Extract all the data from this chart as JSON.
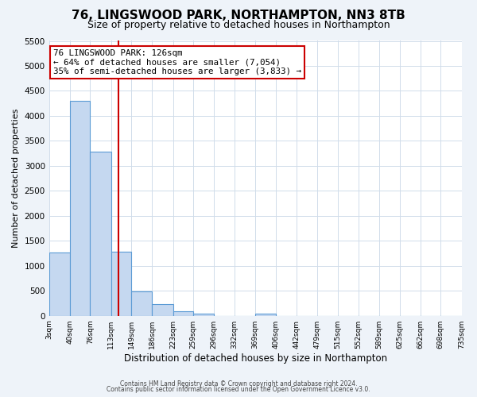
{
  "title": "76, LINGSWOOD PARK, NORTHAMPTON, NN3 8TB",
  "subtitle": "Size of property relative to detached houses in Northampton",
  "xlabel": "Distribution of detached houses by size in Northampton",
  "ylabel": "Number of detached properties",
  "footer_line1": "Contains HM Land Registry data © Crown copyright and database right 2024.",
  "footer_line2": "Contains public sector information licensed under the Open Government Licence v3.0.",
  "bin_edges": [
    3,
    40,
    76,
    113,
    149,
    186,
    223,
    259,
    296,
    332,
    369,
    406,
    442,
    479,
    515,
    552,
    589,
    625,
    662,
    698,
    735
  ],
  "bin_labels": [
    "3sqm",
    "40sqm",
    "76sqm",
    "113sqm",
    "149sqm",
    "186sqm",
    "223sqm",
    "259sqm",
    "296sqm",
    "332sqm",
    "369sqm",
    "406sqm",
    "442sqm",
    "479sqm",
    "515sqm",
    "552sqm",
    "589sqm",
    "625sqm",
    "662sqm",
    "698sqm",
    "735sqm"
  ],
  "counts": [
    1270,
    4300,
    3280,
    1280,
    480,
    230,
    90,
    50,
    0,
    0,
    50,
    0,
    0,
    0,
    0,
    0,
    0,
    0,
    0,
    0
  ],
  "bar_color": "#c5d8f0",
  "bar_edge_color": "#5b9bd5",
  "property_line_x": 126,
  "property_line_color": "#cc0000",
  "ylim_max": 5500,
  "yticks": [
    0,
    500,
    1000,
    1500,
    2000,
    2500,
    3000,
    3500,
    4000,
    4500,
    5000,
    5500
  ],
  "annotation_title": "76 LINGSWOOD PARK: 126sqm",
  "annotation_line1": "← 64% of detached houses are smaller (7,054)",
  "annotation_line2": "35% of semi-detached houses are larger (3,833) →",
  "annotation_box_color": "#ffffff",
  "annotation_box_edge_color": "#cc0000",
  "plot_bg_color": "#ffffff",
  "fig_bg_color": "#eef3f9",
  "grid_color": "#d0dcea",
  "title_fontsize": 11,
  "subtitle_fontsize": 9
}
